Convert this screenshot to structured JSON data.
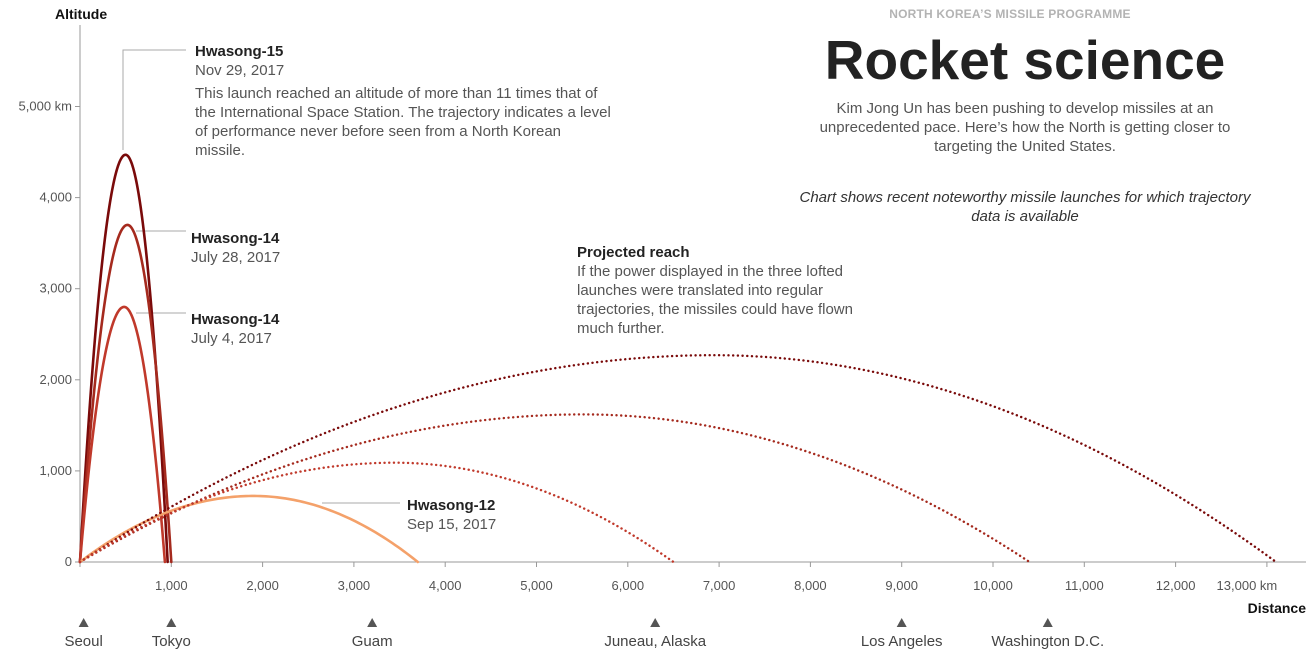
{
  "header": {
    "kicker": "NORTH KOREA’S MISSILE PROGRAMME",
    "title": "Rocket science",
    "subtitle": "Kim Jong Un has been pushing to develop missiles at an unprecedented pace. Here’s how the North is getting closer to targeting the United States.",
    "note": "Chart shows recent noteworthy missile launches for which trajectory data is available"
  },
  "annotations": {
    "hw15": {
      "name": "Hwasong-15",
      "date": "Nov 29, 2017",
      "desc": "This launch reached an altitude of more than 11 times that of the International Space Station. The trajectory indicates a level of performance never before seen from a North Korean missile."
    },
    "hw14b": {
      "name": "Hwasong-14",
      "date": "July 28, 2017"
    },
    "hw14a": {
      "name": "Hwasong-14",
      "date": "July 4, 2017"
    },
    "hw12": {
      "name": "Hwasong-12",
      "date": "Sep 15, 2017"
    },
    "projected": {
      "name": "Projected reach",
      "desc": "If the power displayed in the three lofted launches were translated into regular trajectories, the missiles could have flown much further."
    }
  },
  "colors": {
    "hw15": "#7a0a0a",
    "hw14b": "#a52a1e",
    "hw14a": "#c0392b",
    "hw12": "#f4a16a",
    "axis": "#999999",
    "marker": "#555555"
  },
  "chart_data": {
    "type": "line",
    "ylabel": "Altitude",
    "xlabel": "Distance",
    "xlim": [
      0,
      13300
    ],
    "ylim": [
      0,
      5500
    ],
    "x_ticks": [
      0,
      1000,
      2000,
      3000,
      4000,
      5000,
      6000,
      7000,
      8000,
      9000,
      10000,
      11000,
      12000,
      13000
    ],
    "x_tick_labels": [
      "",
      "1,000",
      "2,000",
      "3,000",
      "4,000",
      "5,000",
      "6,000",
      "7,000",
      "8,000",
      "9,000",
      "10,000",
      "11,000",
      "12,000",
      "13,000 km"
    ],
    "y_ticks": [
      0,
      1000,
      2000,
      3000,
      4000,
      5000
    ],
    "y_tick_labels": [
      "0",
      "1,000",
      "2,000",
      "3,000",
      "4,000",
      "5,000 km"
    ],
    "series": [
      {
        "name": "Hwasong-15",
        "style": "solid",
        "color": "#7a0a0a",
        "range_km": 960,
        "apex_km": 4470
      },
      {
        "name": "Hwasong-14",
        "style": "solid",
        "color": "#a52a1e",
        "range_km": 1000,
        "apex_km": 3700
      },
      {
        "name": "Hwasong-14",
        "style": "solid",
        "color": "#c0392b",
        "range_km": 930,
        "apex_km": 2800
      },
      {
        "name": "Hwasong-12",
        "style": "solid",
        "color": "#f4a16a",
        "range_km": 3700,
        "apex_km": 725,
        "apex_x_km": 1900
      },
      {
        "name": "Hwasong-15",
        "style": "dotted",
        "color": "#7a0a0a",
        "range_km": 13100,
        "apex_km": 2270
      },
      {
        "name": "Hwasong-14",
        "style": "dotted",
        "color": "#a52a1e",
        "range_km": 10400,
        "apex_km": 1620
      },
      {
        "name": "Hwasong-14",
        "style": "dotted",
        "color": "#c0392b",
        "range_km": 6500,
        "apex_km": 1090
      }
    ],
    "places": [
      {
        "name": "Seoul",
        "x_km": 40
      },
      {
        "name": "Tokyo",
        "x_km": 1000
      },
      {
        "name": "Guam",
        "x_km": 3200
      },
      {
        "name": "Juneau, Alaska",
        "x_km": 6300
      },
      {
        "name": "Los Angeles",
        "x_km": 9000
      },
      {
        "name": "Washington D.C.",
        "x_km": 10600
      }
    ]
  }
}
